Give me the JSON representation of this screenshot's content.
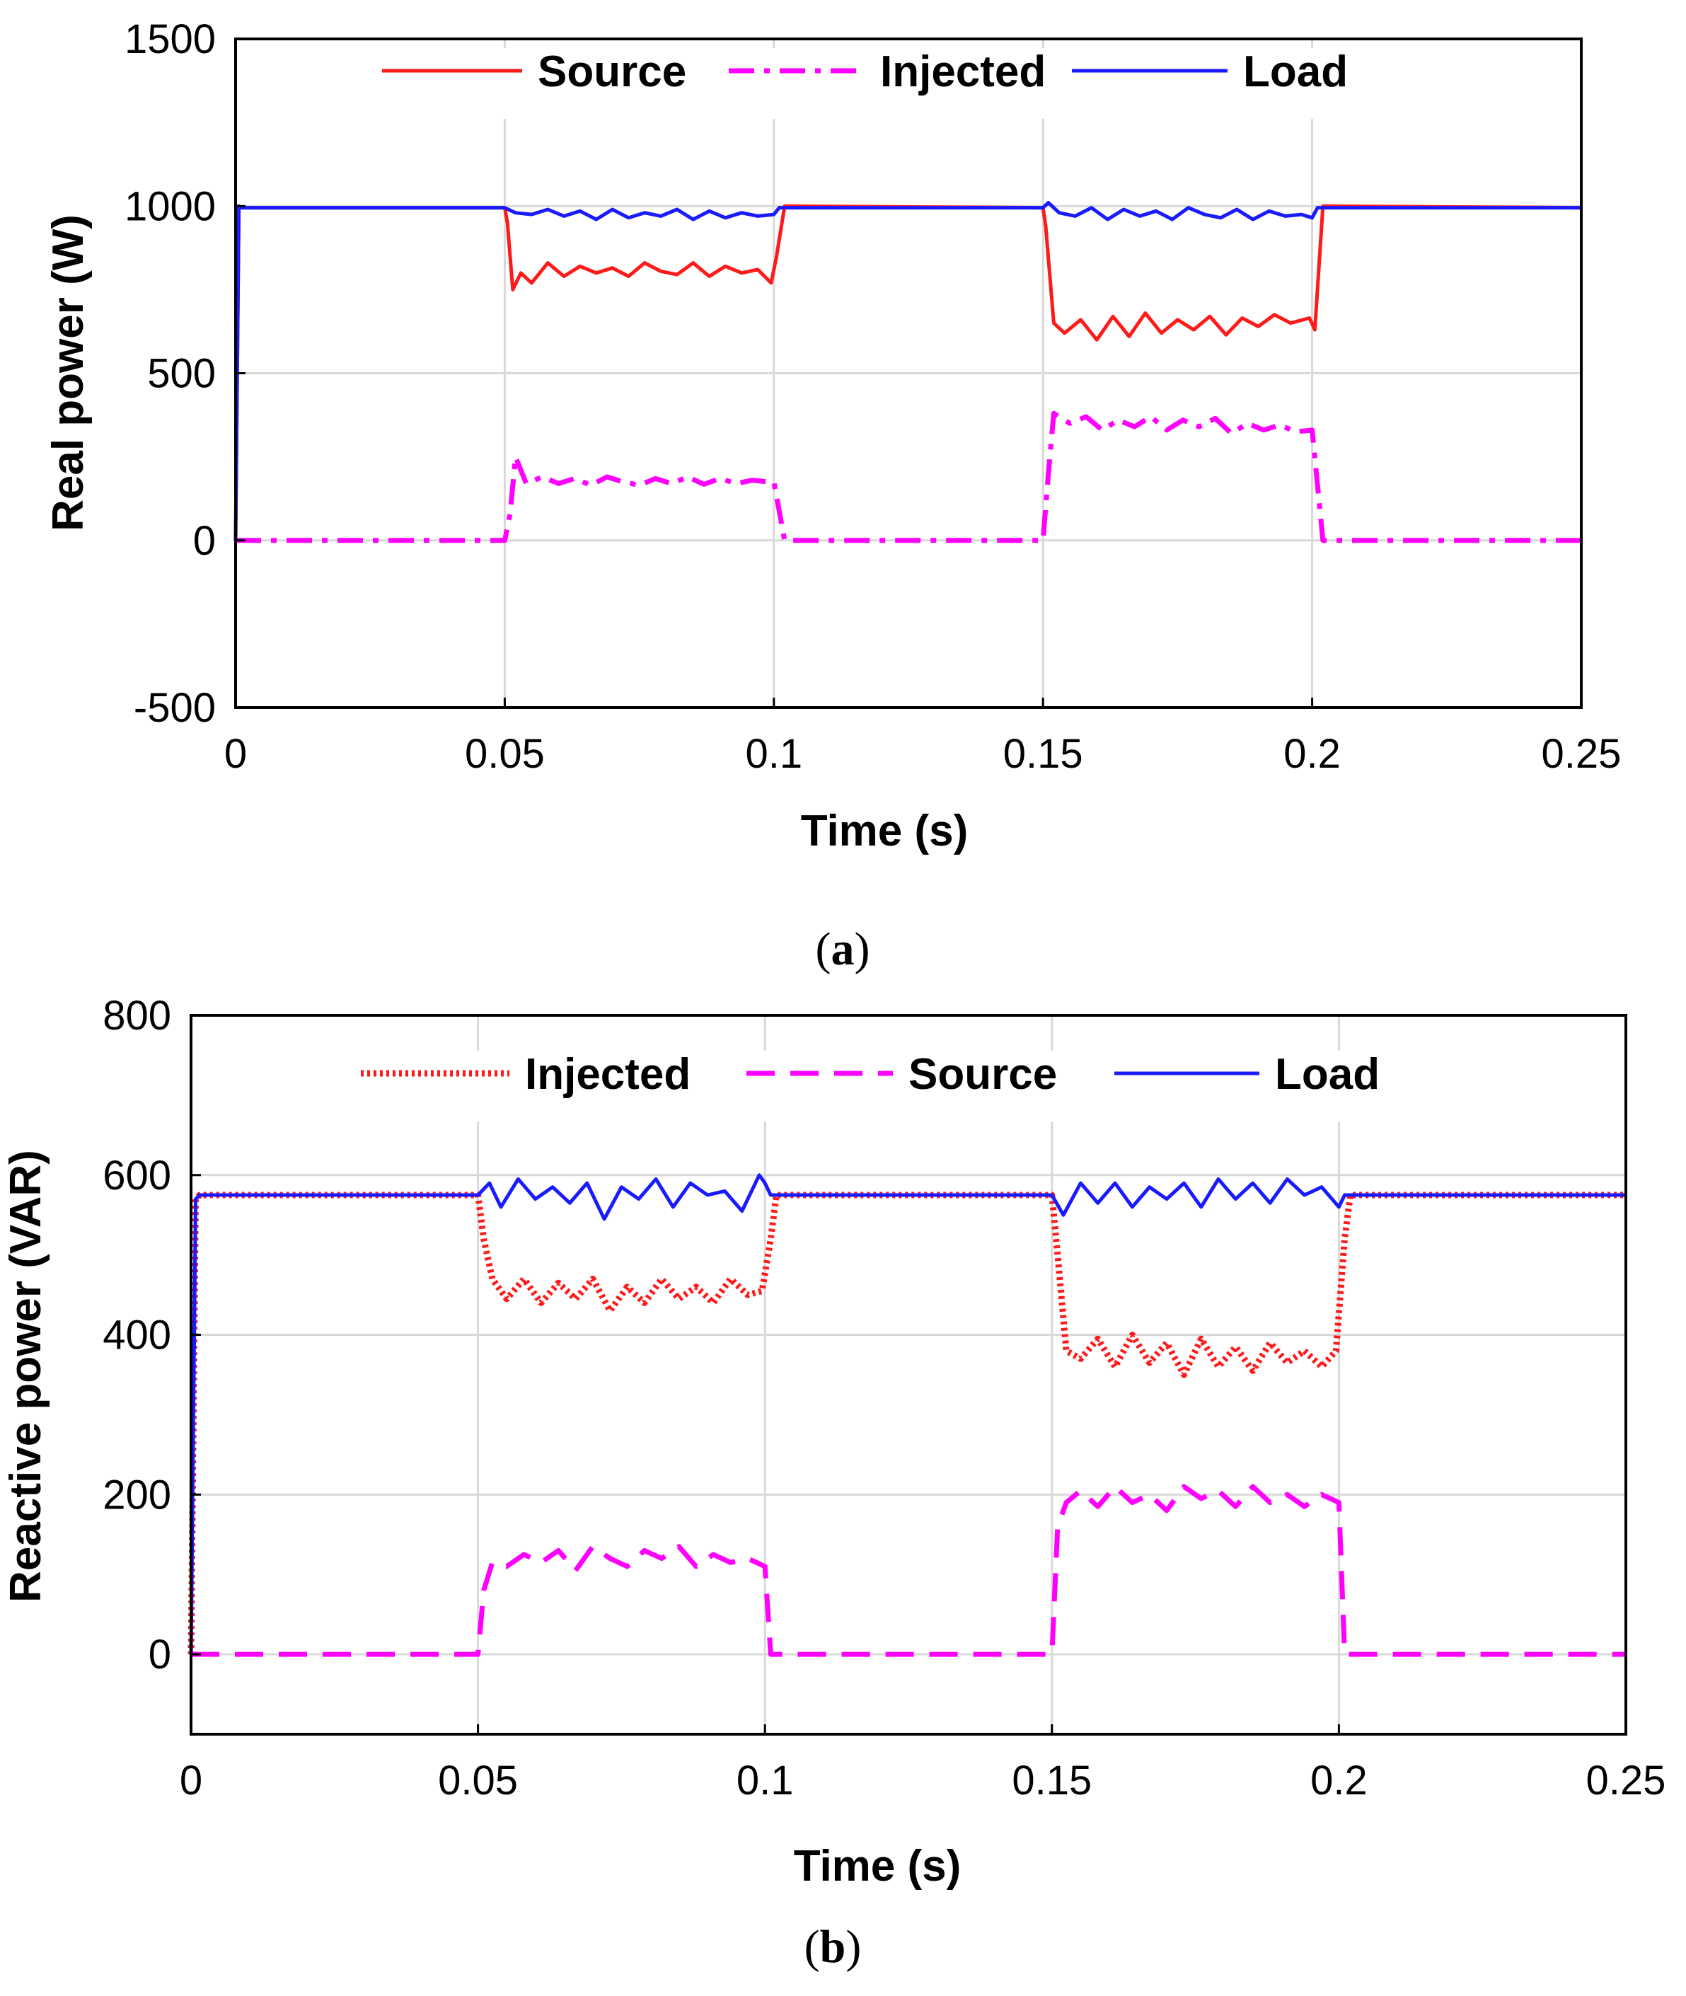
{
  "figure": {
    "caption_a_open": "(",
    "caption_a_letter": "a",
    "caption_a_close": ")",
    "caption_b_open": "(",
    "caption_b_letter": "b",
    "caption_b_close": ")"
  },
  "colors": {
    "red": "#ff1a1a",
    "magenta": "#ff00ff",
    "blue": "#1a1aff"
  },
  "chart_data": [
    {
      "id": "a",
      "type": "line",
      "xlabel": "Time (s)",
      "ylabel": "Real power (W)",
      "xlim": [
        0,
        0.25
      ],
      "ylim": [
        -500,
        1500
      ],
      "xticks": [
        0,
        0.05,
        0.1,
        0.15,
        0.2,
        0.25
      ],
      "xtick_labels": [
        "0",
        "0.05",
        "0.1",
        "0.15",
        "0.2",
        "0.25"
      ],
      "yticks": [
        -500,
        0,
        500,
        1000,
        1500
      ],
      "ytick_labels": [
        "-500",
        "0",
        "500",
        "1000",
        "1500"
      ],
      "grid": true,
      "legend_position": "top",
      "series": [
        {
          "name": "Source",
          "color": "#ff1a1a",
          "style": "solid",
          "x": [
            0,
            0.0006,
            0.001,
            0.05,
            0.0505,
            0.0515,
            0.053,
            0.055,
            0.058,
            0.061,
            0.064,
            0.067,
            0.07,
            0.073,
            0.076,
            0.079,
            0.082,
            0.085,
            0.088,
            0.091,
            0.094,
            0.097,
            0.0995,
            0.1005,
            0.102,
            0.15,
            0.1505,
            0.152,
            0.154,
            0.157,
            0.16,
            0.163,
            0.166,
            0.169,
            0.172,
            0.175,
            0.178,
            0.181,
            0.184,
            0.187,
            0.19,
            0.193,
            0.196,
            0.1995,
            0.2005,
            0.202,
            0.25
          ],
          "y": [
            0,
            1000,
            995,
            995,
            950,
            750,
            800,
            770,
            830,
            790,
            820,
            800,
            815,
            790,
            830,
            805,
            795,
            830,
            790,
            820,
            800,
            810,
            770,
            850,
            1000,
            995,
            940,
            650,
            620,
            660,
            600,
            670,
            610,
            680,
            620,
            660,
            630,
            670,
            615,
            665,
            640,
            675,
            650,
            665,
            630,
            1000,
            995
          ]
        },
        {
          "name": "Injected",
          "color": "#ff00ff",
          "style": "dashdot",
          "x": [
            0,
            0.05,
            0.051,
            0.052,
            0.054,
            0.057,
            0.06,
            0.063,
            0.066,
            0.069,
            0.072,
            0.075,
            0.078,
            0.081,
            0.084,
            0.087,
            0.09,
            0.093,
            0.096,
            0.099,
            0.1,
            0.102,
            0.15,
            0.151,
            0.152,
            0.155,
            0.158,
            0.161,
            0.164,
            0.167,
            0.17,
            0.173,
            0.176,
            0.179,
            0.182,
            0.185,
            0.188,
            0.191,
            0.194,
            0.197,
            0.2,
            0.202,
            0.25
          ],
          "y": [
            0,
            0,
            80,
            250,
            170,
            190,
            170,
            185,
            165,
            190,
            175,
            165,
            185,
            170,
            190,
            168,
            185,
            170,
            180,
            175,
            175,
            0,
            0,
            200,
            380,
            350,
            370,
            330,
            360,
            340,
            370,
            330,
            360,
            340,
            365,
            320,
            350,
            330,
            345,
            325,
            330,
            0,
            0
          ]
        },
        {
          "name": "Load",
          "color": "#1a1aff",
          "style": "solid",
          "x": [
            0,
            0.0006,
            0.001,
            0.05,
            0.052,
            0.055,
            0.058,
            0.061,
            0.064,
            0.067,
            0.07,
            0.073,
            0.076,
            0.079,
            0.082,
            0.085,
            0.088,
            0.091,
            0.094,
            0.097,
            0.1,
            0.101,
            0.15,
            0.151,
            0.153,
            0.156,
            0.159,
            0.162,
            0.165,
            0.168,
            0.171,
            0.174,
            0.177,
            0.18,
            0.183,
            0.186,
            0.189,
            0.192,
            0.195,
            0.198,
            0.2,
            0.201,
            0.25
          ],
          "y": [
            0,
            1000,
            995,
            995,
            980,
            975,
            990,
            970,
            985,
            960,
            990,
            965,
            980,
            970,
            990,
            960,
            985,
            965,
            980,
            970,
            975,
            995,
            995,
            1010,
            980,
            970,
            995,
            960,
            990,
            970,
            985,
            960,
            995,
            975,
            965,
            990,
            960,
            985,
            970,
            975,
            965,
            995,
            995
          ]
        }
      ]
    },
    {
      "id": "b",
      "type": "line",
      "xlabel": "Time (s)",
      "ylabel": "Reactive power (VAR)",
      "xlim": [
        0,
        0.25
      ],
      "ylim": [
        -100,
        800
      ],
      "xticks": [
        0,
        0.05,
        0.1,
        0.15,
        0.2,
        0.25
      ],
      "xtick_labels": [
        "0",
        "0.05",
        "0.1",
        "0.15",
        "0.2",
        "0.25"
      ],
      "yticks": [
        0,
        200,
        400,
        600,
        800
      ],
      "ytick_labels": [
        "0",
        "200",
        "400",
        "600",
        "800"
      ],
      "grid": true,
      "legend_position": "top",
      "series": [
        {
          "name": "Injected",
          "color": "#ff1a1a",
          "style": "dotted",
          "x": [
            0,
            0.0008,
            0.0015,
            0.05,
            0.051,
            0.0525,
            0.055,
            0.058,
            0.061,
            0.064,
            0.067,
            0.07,
            0.073,
            0.076,
            0.079,
            0.082,
            0.085,
            0.088,
            0.091,
            0.094,
            0.097,
            0.0995,
            0.101,
            0.102,
            0.15,
            0.151,
            0.1525,
            0.155,
            0.158,
            0.161,
            0.164,
            0.167,
            0.17,
            0.173,
            0.176,
            0.179,
            0.182,
            0.185,
            0.188,
            0.191,
            0.194,
            0.197,
            0.1995,
            0.201,
            0.202,
            0.25
          ],
          "y": [
            0,
            570,
            575,
            575,
            520,
            470,
            445,
            470,
            440,
            465,
            445,
            470,
            430,
            460,
            440,
            470,
            445,
            460,
            440,
            470,
            450,
            455,
            520,
            575,
            575,
            500,
            380,
            370,
            395,
            360,
            400,
            365,
            390,
            350,
            395,
            360,
            385,
            355,
            390,
            365,
            380,
            360,
            380,
            520,
            575,
            575
          ]
        },
        {
          "name": "Source",
          "color": "#ff00ff",
          "style": "dashed",
          "x": [
            0,
            0.05,
            0.051,
            0.0525,
            0.055,
            0.058,
            0.061,
            0.064,
            0.067,
            0.07,
            0.073,
            0.076,
            0.079,
            0.082,
            0.085,
            0.088,
            0.091,
            0.094,
            0.097,
            0.1,
            0.101,
            0.15,
            0.151,
            0.1525,
            0.155,
            0.158,
            0.161,
            0.164,
            0.167,
            0.17,
            0.173,
            0.176,
            0.179,
            0.182,
            0.185,
            0.188,
            0.191,
            0.194,
            0.197,
            0.2,
            0.201,
            0.25
          ],
          "y": [
            0,
            0,
            80,
            115,
            110,
            125,
            115,
            130,
            105,
            135,
            120,
            110,
            130,
            120,
            135,
            110,
            125,
            115,
            120,
            110,
            0,
            0,
            160,
            190,
            205,
            185,
            210,
            190,
            200,
            180,
            210,
            195,
            205,
            185,
            210,
            190,
            200,
            185,
            200,
            190,
            0,
            0
          ]
        },
        {
          "name": "Load",
          "color": "#1a1aff",
          "style": "solid",
          "x": [
            0,
            0.0008,
            0.0015,
            0.05,
            0.052,
            0.054,
            0.057,
            0.06,
            0.063,
            0.066,
            0.069,
            0.072,
            0.075,
            0.078,
            0.081,
            0.084,
            0.087,
            0.09,
            0.093,
            0.096,
            0.099,
            0.1,
            0.101,
            0.15,
            0.152,
            0.155,
            0.158,
            0.161,
            0.164,
            0.167,
            0.17,
            0.173,
            0.176,
            0.179,
            0.182,
            0.185,
            0.188,
            0.191,
            0.194,
            0.197,
            0.2,
            0.201,
            0.25
          ],
          "y": [
            0,
            570,
            575,
            575,
            590,
            560,
            595,
            570,
            585,
            565,
            590,
            545,
            585,
            570,
            595,
            560,
            590,
            575,
            580,
            555,
            600,
            590,
            575,
            575,
            550,
            590,
            565,
            590,
            560,
            585,
            570,
            590,
            560,
            595,
            570,
            590,
            565,
            595,
            575,
            585,
            560,
            575,
            575
          ]
        }
      ]
    }
  ]
}
